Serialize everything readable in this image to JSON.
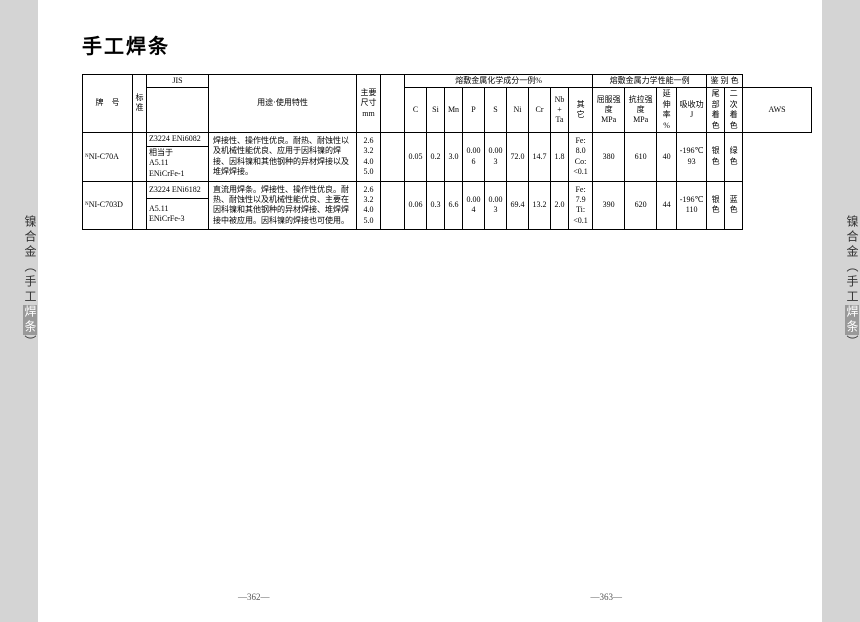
{
  "title": "手工焊条",
  "side_tab": {
    "text_a": "镍合金（手工",
    "text_b": "焊条",
    "text_c": "）"
  },
  "headers": {
    "grade": "牌　号",
    "std": "标\n准",
    "jis": "JIS",
    "aws": "AWS",
    "usage": "用途·使用特性",
    "size": "主要\n尺寸\nmm",
    "chem": "熔敷金属化学成分一例%",
    "c": "C",
    "si": "Si",
    "mn": "Mn",
    "p": "P",
    "s": "S",
    "ni": "Ni",
    "cr": "Cr",
    "nbta": "Nb\n+\nTa",
    "other": "其\n它",
    "mech": "熔敷金属力学性能一例",
    "ys": "屈服强度\nMPa",
    "ts": "抗拉强度\nMPa",
    "el": "延伸\n率\n%",
    "impact": "吸收功\nJ",
    "disc": "鉴 别 色",
    "tail": "尾部\n着色",
    "sec": "二次\n着色"
  },
  "rows": [
    {
      "grade": "ᴺNI-C70A",
      "jis": "Z3224 ENi6082",
      "aws": "相当于\nA5.11\nENiCrFe-1",
      "usage": "焊接性、操作性优良。耐热、耐蚀性以及机械性能优良、应用于因科镍的焊接、因科镍和其他钢种的异材焊接以及堆焊焊接。",
      "size": "2.6\n3.2\n4.0\n5.0",
      "c": "0.05",
      "si": "0.2",
      "mn": "3.0",
      "p": "0.006",
      "s": "0.003",
      "ni": "72.0",
      "cr": "14.7",
      "nbta": "1.8",
      "other": "Fe:\n8.0\nCo:\n<0.1",
      "ys": "380",
      "ts": "610",
      "el": "40",
      "impact": "-196℃\n93",
      "tail": "银\n色",
      "sec": "绿\n色"
    },
    {
      "grade": "ᴺNI-C703D",
      "jis": "Z3224 ENi6182",
      "aws": "A5.11\nENiCrFe-3",
      "usage": "直流用焊条。焊接性、操作性优良。耐热、耐蚀性以及机械性能优良、主要在因科镍和其他钢种的异材焊接、堆焊焊接中被应用。因科镍的焊接也可使用。",
      "size": "2.6\n3.2\n4.0\n5.0",
      "c": "0.06",
      "si": "0.3",
      "mn": "6.6",
      "p": "0.004",
      "s": "0.003",
      "ni": "69.4",
      "cr": "13.2",
      "nbta": "2.0",
      "other": "Fe:\n7.9\nTi:\n<0.1",
      "ys": "390",
      "ts": "620",
      "el": "44",
      "impact": "-196℃\n110",
      "tail": "银\n色",
      "sec": "蓝\n色"
    }
  ],
  "page_left": "—362—",
  "page_right": "—363—",
  "colors": {
    "page_bg": "#ffffff",
    "outer_bg": "#d4d4d4",
    "border": "#000000",
    "text": "#000000"
  }
}
